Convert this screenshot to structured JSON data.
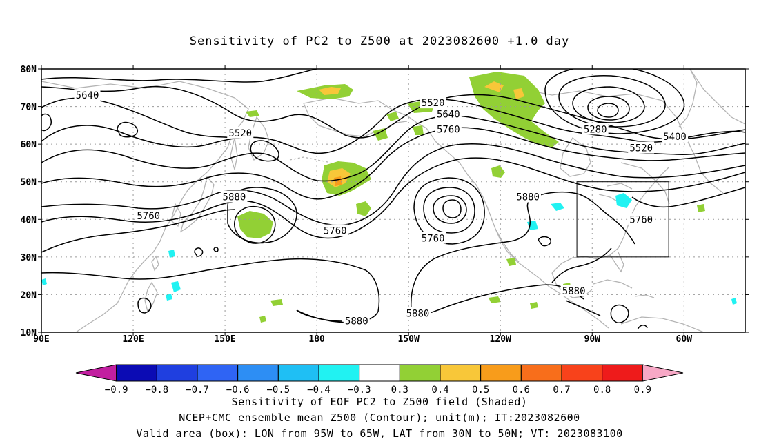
{
  "title": "Sensitivity of PC2 to Z500 at 2023082600 +1.0 day",
  "extent": {
    "lon_min": 90,
    "lon_max": 320,
    "lat_min": 10,
    "lat_max": 80
  },
  "lat_ticks": [
    {
      "lat": 80,
      "label": "80N"
    },
    {
      "lat": 70,
      "label": "70N"
    },
    {
      "lat": 60,
      "label": "60N"
    },
    {
      "lat": 50,
      "label": "50N"
    },
    {
      "lat": 40,
      "label": "40N"
    },
    {
      "lat": 30,
      "label": "30N"
    },
    {
      "lat": 20,
      "label": "20N"
    },
    {
      "lat": 10,
      "label": "10N"
    }
  ],
  "lon_ticks": [
    {
      "lon": 90,
      "label": "90E"
    },
    {
      "lon": 120,
      "label": "120E"
    },
    {
      "lon": 150,
      "label": "150E"
    },
    {
      "lon": 180,
      "label": "180"
    },
    {
      "lon": 210,
      "label": "150W"
    },
    {
      "lon": 240,
      "label": "120W"
    },
    {
      "lon": 270,
      "label": "90W"
    },
    {
      "lon": 300,
      "label": "60W"
    }
  ],
  "valid_box": {
    "lon_w": 265,
    "lon_e": 295,
    "lat_s": 30,
    "lat_n": 50
  },
  "contour_labels": [
    {
      "text": "5640",
      "lon": 105,
      "lat": 73
    },
    {
      "text": "5520",
      "lon": 155,
      "lat": 63
    },
    {
      "text": "5520",
      "lon": 218,
      "lat": 71
    },
    {
      "text": "5640",
      "lon": 223,
      "lat": 68
    },
    {
      "text": "5760",
      "lon": 223,
      "lat": 64
    },
    {
      "text": "5280",
      "lon": 271,
      "lat": 64
    },
    {
      "text": "5400",
      "lon": 297,
      "lat": 62
    },
    {
      "text": "5520",
      "lon": 286,
      "lat": 59
    },
    {
      "text": "5760",
      "lon": 125,
      "lat": 41
    },
    {
      "text": "5880",
      "lon": 153,
      "lat": 46
    },
    {
      "text": "5760",
      "lon": 186,
      "lat": 37
    },
    {
      "text": "5760",
      "lon": 218,
      "lat": 35
    },
    {
      "text": "5880",
      "lon": 249,
      "lat": 46
    },
    {
      "text": "5760",
      "lon": 286,
      "lat": 40
    },
    {
      "text": "5880",
      "lon": 264,
      "lat": 21
    },
    {
      "text": "5880",
      "lon": 193,
      "lat": 13
    },
    {
      "text": "5880",
      "lon": 213,
      "lat": 15
    }
  ],
  "colorbar": {
    "colors": [
      "#c21fa0",
      "#0b0bb4",
      "#1f3fe0",
      "#2f64f4",
      "#2d8ef4",
      "#1fbff4",
      "#21f2f2",
      "#ffffff",
      "#92d035",
      "#f8c739",
      "#f89c1b",
      "#f86e1b",
      "#f8421b",
      "#ee1b1b",
      "#f7a8c6"
    ],
    "labels": [
      "−0.9",
      "−0.8",
      "−0.7",
      "−0.6",
      "−0.5",
      "−0.4",
      "−0.3",
      "0.3",
      "0.4",
      "0.5",
      "0.6",
      "0.7",
      "0.8",
      "0.9"
    ]
  },
  "caption": {
    "line1": "Sensitivity of EOF PC2 to Z500 field (Shaded)",
    "line2": "NCEP+CMC ensemble mean Z500 (Contour); unit(m); IT:2023082600",
    "line3": "Valid area (box): LON from 95W to 65W, LAT from 30N to 50N; VT: 2023083100"
  }
}
